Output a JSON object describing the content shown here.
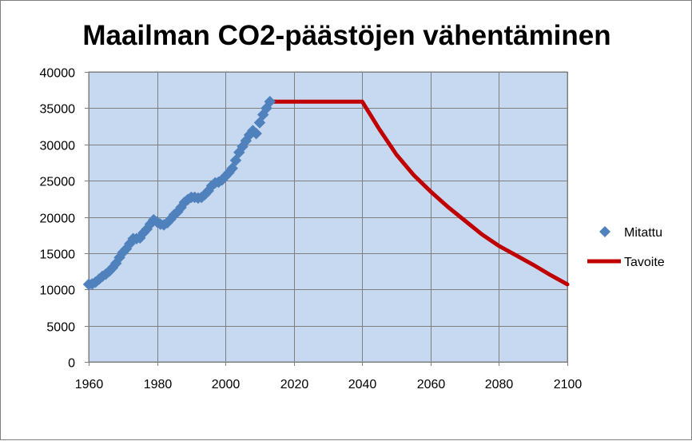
{
  "chart_data": {
    "type": "line",
    "title": "Maailman CO2-päästöjen vähentäminen",
    "xlabel": "",
    "ylabel": "",
    "xlim": [
      1960,
      2100
    ],
    "ylim": [
      0,
      40000
    ],
    "x_ticks": [
      1960,
      1980,
      2000,
      2020,
      2040,
      2060,
      2080,
      2100
    ],
    "y_ticks": [
      0,
      5000,
      10000,
      15000,
      20000,
      25000,
      30000,
      35000,
      40000
    ],
    "grid": true,
    "legend_position": "right",
    "colors": {
      "plot_background": "#c6d9f1",
      "gridline": "#7f7f7f",
      "measured": "#4f81bd",
      "target": "#c00000"
    },
    "series": [
      {
        "name": "Mitattu",
        "style": "markers",
        "x": [
          1960,
          1961,
          1962,
          1963,
          1964,
          1965,
          1966,
          1967,
          1968,
          1969,
          1970,
          1971,
          1972,
          1973,
          1974,
          1975,
          1976,
          1977,
          1978,
          1979,
          1980,
          1981,
          1982,
          1983,
          1984,
          1985,
          1986,
          1987,
          1988,
          1989,
          1990,
          1991,
          1992,
          1993,
          1994,
          1995,
          1996,
          1997,
          1998,
          1999,
          2000,
          2001,
          2002,
          2003,
          2004,
          2005,
          2006,
          2007,
          2008,
          2009,
          2010,
          2011,
          2012,
          2013
        ],
        "y": [
          10700,
          10750,
          11000,
          11400,
          11800,
          12100,
          12500,
          13000,
          13600,
          14400,
          15100,
          15600,
          16300,
          17000,
          17000,
          17100,
          17800,
          18300,
          19000,
          19600,
          19300,
          19000,
          18900,
          19200,
          19700,
          20300,
          20700,
          21300,
          22000,
          22400,
          22700,
          22700,
          22600,
          22700,
          23100,
          23600,
          24300,
          24700,
          24800,
          25100,
          25600,
          26100,
          26700,
          27800,
          28900,
          29700,
          30500,
          31300,
          31900,
          31500,
          33000,
          34100,
          35000,
          35900
        ]
      },
      {
        "name": "Tavoite",
        "style": "line",
        "x": [
          2013,
          2020,
          2030,
          2040,
          2045,
          2050,
          2055,
          2060,
          2065,
          2070,
          2075,
          2080,
          2085,
          2090,
          2095,
          2100
        ],
        "y": [
          35900,
          35900,
          35900,
          35900,
          32100,
          28600,
          25800,
          23500,
          21400,
          19500,
          17600,
          16000,
          14700,
          13400,
          12000,
          10700
        ]
      }
    ]
  }
}
